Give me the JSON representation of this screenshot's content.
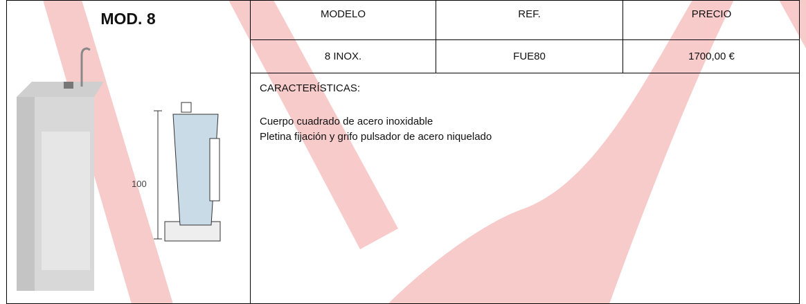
{
  "title": "MOD. 8",
  "image": {
    "dimension_label": "100"
  },
  "table": {
    "headers": [
      "MODELO",
      "REF.",
      "PRECIO"
    ],
    "rows": [
      [
        "8 INOX.",
        "FUE80",
        "1700,00 €"
      ]
    ]
  },
  "characteristics": {
    "heading": "CARACTERÍSTICAS:",
    "lines": [
      "Cuerpo cuadrado de acero inoxidable",
      "Pletina fijación y grifo pulsador de acero niquelado"
    ]
  }
}
